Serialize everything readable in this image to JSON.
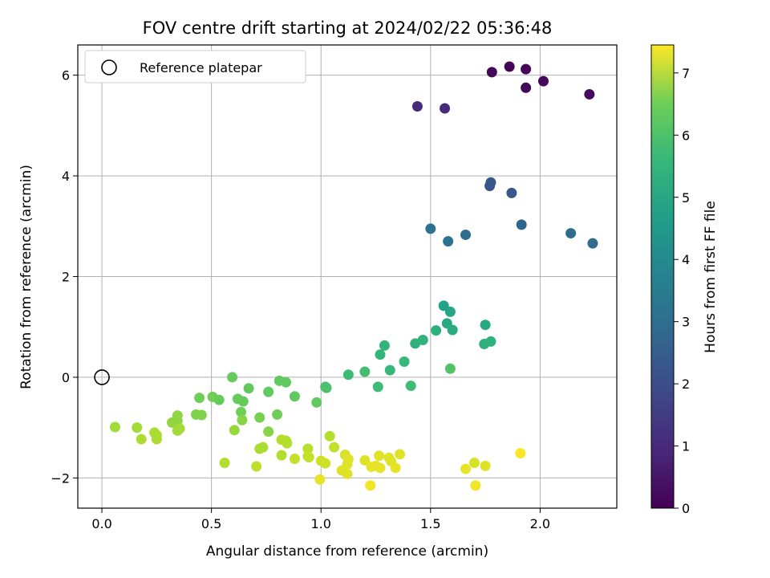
{
  "chart_data": {
    "type": "scatter",
    "title": "FOV centre drift starting at 2024/02/22 05:36:48",
    "xlabel": "Angular distance from reference (arcmin)",
    "ylabel": "Rotation from reference (arcmin)",
    "xlim": [
      -0.11,
      2.35
    ],
    "ylim": [
      -2.6,
      6.6
    ],
    "xticks": [
      0.0,
      0.5,
      1.0,
      1.5,
      2.0
    ],
    "xtick_labels": [
      "0.0",
      "0.5",
      "1.0",
      "1.5",
      "2.0"
    ],
    "yticks": [
      -2,
      0,
      2,
      4,
      6
    ],
    "ytick_labels": [
      "−2",
      "0",
      "2",
      "4",
      "6"
    ],
    "grid": true,
    "legend": {
      "placement": "upper-left",
      "entries": [
        "Reference platepar"
      ]
    },
    "reference_point": {
      "x": 0.0,
      "y": 0.0
    },
    "colorbar": {
      "label": "Hours from first FF file",
      "colormap": "viridis",
      "range": [
        0,
        7.45
      ],
      "ticks": [
        0,
        1,
        2,
        3,
        4,
        5,
        6,
        7
      ],
      "tick_labels": [
        "0",
        "1",
        "2",
        "3",
        "4",
        "5",
        "6",
        "7"
      ]
    },
    "points": [
      {
        "x": 1.86,
        "y": 6.17,
        "c": 0.1
      },
      {
        "x": 1.935,
        "y": 6.12,
        "c": 0.1
      },
      {
        "x": 1.78,
        "y": 6.06,
        "c": 0.15
      },
      {
        "x": 2.015,
        "y": 5.88,
        "c": 0.15
      },
      {
        "x": 1.935,
        "y": 5.75,
        "c": 0.1
      },
      {
        "x": 2.225,
        "y": 5.62,
        "c": 0.2
      },
      {
        "x": 1.44,
        "y": 5.38,
        "c": 0.9
      },
      {
        "x": 1.565,
        "y": 5.34,
        "c": 0.9
      },
      {
        "x": 1.775,
        "y": 3.87,
        "c": 2.0
      },
      {
        "x": 1.77,
        "y": 3.8,
        "c": 2.0
      },
      {
        "x": 1.87,
        "y": 3.66,
        "c": 2.05
      },
      {
        "x": 1.915,
        "y": 3.03,
        "c": 2.4
      },
      {
        "x": 1.5,
        "y": 2.95,
        "c": 2.8
      },
      {
        "x": 2.14,
        "y": 2.86,
        "c": 2.6
      },
      {
        "x": 1.66,
        "y": 2.83,
        "c": 2.6
      },
      {
        "x": 1.58,
        "y": 2.7,
        "c": 2.8
      },
      {
        "x": 2.24,
        "y": 2.66,
        "c": 2.6
      },
      {
        "x": 1.56,
        "y": 1.42,
        "c": 4.3
      },
      {
        "x": 1.59,
        "y": 1.3,
        "c": 4.4
      },
      {
        "x": 1.575,
        "y": 1.07,
        "c": 4.5
      },
      {
        "x": 1.75,
        "y": 1.04,
        "c": 4.5
      },
      {
        "x": 1.6,
        "y": 0.94,
        "c": 4.6
      },
      {
        "x": 1.525,
        "y": 0.93,
        "c": 4.7
      },
      {
        "x": 1.465,
        "y": 0.74,
        "c": 4.8
      },
      {
        "x": 1.775,
        "y": 0.71,
        "c": 4.8
      },
      {
        "x": 1.43,
        "y": 0.67,
        "c": 4.8
      },
      {
        "x": 1.745,
        "y": 0.66,
        "c": 4.7
      },
      {
        "x": 1.29,
        "y": 0.63,
        "c": 4.9
      },
      {
        "x": 1.27,
        "y": 0.45,
        "c": 4.9
      },
      {
        "x": 1.38,
        "y": 0.31,
        "c": 5.0
      },
      {
        "x": 1.59,
        "y": 0.17,
        "c": 5.4
      },
      {
        "x": 1.315,
        "y": 0.14,
        "c": 5.0
      },
      {
        "x": 1.2,
        "y": 0.11,
        "c": 5.2
      },
      {
        "x": 1.125,
        "y": 0.05,
        "c": 5.1
      },
      {
        "x": 1.41,
        "y": -0.17,
        "c": 5.1
      },
      {
        "x": 1.26,
        "y": -0.19,
        "c": 5.1
      },
      {
        "x": 1.02,
        "y": -0.19,
        "c": 5.3
      },
      {
        "x": 1.025,
        "y": -0.21,
        "c": 5.3
      },
      {
        "x": 0.595,
        "y": 0.0,
        "c": 5.7
      },
      {
        "x": 0.81,
        "y": -0.07,
        "c": 5.6
      },
      {
        "x": 0.84,
        "y": -0.1,
        "c": 5.6
      },
      {
        "x": 0.67,
        "y": -0.22,
        "c": 5.6
      },
      {
        "x": 0.76,
        "y": -0.29,
        "c": 5.6
      },
      {
        "x": 0.445,
        "y": -0.41,
        "c": 5.8
      },
      {
        "x": 0.505,
        "y": -0.39,
        "c": 5.8
      },
      {
        "x": 0.88,
        "y": -0.38,
        "c": 5.6
      },
      {
        "x": 0.62,
        "y": -0.43,
        "c": 5.7
      },
      {
        "x": 0.535,
        "y": -0.45,
        "c": 5.7
      },
      {
        "x": 0.645,
        "y": -0.48,
        "c": 5.7
      },
      {
        "x": 0.98,
        "y": -0.5,
        "c": 5.6
      },
      {
        "x": 0.635,
        "y": -0.69,
        "c": 5.8
      },
      {
        "x": 0.43,
        "y": -0.74,
        "c": 6.0
      },
      {
        "x": 0.455,
        "y": -0.75,
        "c": 6.0
      },
      {
        "x": 0.345,
        "y": -0.76,
        "c": 6.2
      },
      {
        "x": 0.8,
        "y": -0.74,
        "c": 5.8
      },
      {
        "x": 0.72,
        "y": -0.8,
        "c": 5.9
      },
      {
        "x": 0.64,
        "y": -0.85,
        "c": 6.1
      },
      {
        "x": 0.345,
        "y": -0.87,
        "c": 6.2
      },
      {
        "x": 0.32,
        "y": -0.9,
        "c": 6.2
      },
      {
        "x": 0.06,
        "y": -0.99,
        "c": 6.4
      },
      {
        "x": 0.16,
        "y": -1.0,
        "c": 6.4
      },
      {
        "x": 0.355,
        "y": -1.02,
        "c": 6.4
      },
      {
        "x": 0.605,
        "y": -1.05,
        "c": 6.3
      },
      {
        "x": 0.345,
        "y": -1.06,
        "c": 6.4
      },
      {
        "x": 0.76,
        "y": -1.08,
        "c": 6.1
      },
      {
        "x": 0.24,
        "y": -1.1,
        "c": 6.5
      },
      {
        "x": 0.25,
        "y": -1.15,
        "c": 6.5
      },
      {
        "x": 1.04,
        "y": -1.17,
        "c": 6.6
      },
      {
        "x": 0.18,
        "y": -1.23,
        "c": 6.5
      },
      {
        "x": 0.25,
        "y": -1.23,
        "c": 6.5
      },
      {
        "x": 0.82,
        "y": -1.24,
        "c": 6.6
      },
      {
        "x": 0.84,
        "y": -1.26,
        "c": 6.6
      },
      {
        "x": 0.845,
        "y": -1.31,
        "c": 6.6
      },
      {
        "x": 0.735,
        "y": -1.39,
        "c": 6.5
      },
      {
        "x": 0.72,
        "y": -1.42,
        "c": 6.5
      },
      {
        "x": 1.06,
        "y": -1.39,
        "c": 6.8
      },
      {
        "x": 0.94,
        "y": -1.42,
        "c": 6.7
      },
      {
        "x": 0.82,
        "y": -1.55,
        "c": 6.6
      },
      {
        "x": 1.11,
        "y": -1.54,
        "c": 7.0
      },
      {
        "x": 0.94,
        "y": -1.57,
        "c": 6.8
      },
      {
        "x": 0.88,
        "y": -1.62,
        "c": 6.8
      },
      {
        "x": 0.945,
        "y": -1.59,
        "c": 6.8
      },
      {
        "x": 1.36,
        "y": -1.53,
        "c": 7.1
      },
      {
        "x": 1.265,
        "y": -1.56,
        "c": 7.1
      },
      {
        "x": 1.2,
        "y": -1.65,
        "c": 7.1
      },
      {
        "x": 1.125,
        "y": -1.63,
        "c": 7.1
      },
      {
        "x": 1.31,
        "y": -1.6,
        "c": 7.1
      },
      {
        "x": 1.32,
        "y": -1.67,
        "c": 7.1
      },
      {
        "x": 1.0,
        "y": -1.66,
        "c": 6.9
      },
      {
        "x": 1.02,
        "y": -1.71,
        "c": 6.9
      },
      {
        "x": 0.56,
        "y": -1.7,
        "c": 6.6
      },
      {
        "x": 1.12,
        "y": -1.73,
        "c": 7.1
      },
      {
        "x": 1.7,
        "y": -1.7,
        "c": 7.0
      },
      {
        "x": 1.75,
        "y": -1.76,
        "c": 7.1
      },
      {
        "x": 0.705,
        "y": -1.77,
        "c": 6.7
      },
      {
        "x": 1.25,
        "y": -1.76,
        "c": 7.2
      },
      {
        "x": 1.23,
        "y": -1.78,
        "c": 7.2
      },
      {
        "x": 1.27,
        "y": -1.8,
        "c": 7.2
      },
      {
        "x": 1.34,
        "y": -1.8,
        "c": 7.2
      },
      {
        "x": 1.66,
        "y": -1.82,
        "c": 7.2
      },
      {
        "x": 1.095,
        "y": -1.85,
        "c": 7.1
      },
      {
        "x": 1.12,
        "y": -1.92,
        "c": 7.1
      },
      {
        "x": 0.995,
        "y": -2.03,
        "c": 7.2
      },
      {
        "x": 1.225,
        "y": -2.15,
        "c": 7.3
      },
      {
        "x": 1.705,
        "y": -2.15,
        "c": 7.3
      },
      {
        "x": 1.91,
        "y": -1.51,
        "c": 7.4
      }
    ]
  }
}
